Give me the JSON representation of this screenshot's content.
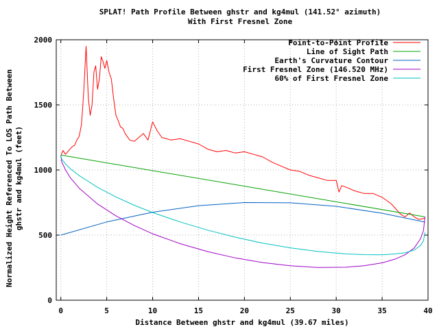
{
  "chart_data": {
    "type": "line",
    "title": "SPLAT! Path Profile Between ghstr and kg4mul (141.52° azimuth)",
    "subtitle": "With First Fresnel Zone",
    "xlabel": "Distance Between ghstr and kg4mul (39.67 miles)",
    "ylabel_line1": "Normalized Height Referenced To LOS Path Between",
    "ylabel_line2": "ghstr and kg4mul (feet)",
    "xlim": [
      -0.5,
      40
    ],
    "ylim": [
      0,
      2000
    ],
    "xticks": [
      0,
      5,
      10,
      15,
      20,
      25,
      30,
      35,
      40
    ],
    "yticks": [
      0,
      500,
      1000,
      1500,
      2000
    ],
    "xtick_labels": [
      "0",
      "5",
      "10",
      "15",
      "20",
      "25",
      "30",
      "35",
      "40"
    ],
    "ytick_labels": [
      "0",
      "500",
      "1000",
      "1500",
      "2000"
    ],
    "grid": true,
    "legend_position": "top-right",
    "series": [
      {
        "name": "Point-to-Point Profile",
        "color": "#ff0000",
        "x": [
          0,
          0.25,
          0.5,
          0.75,
          1,
          1.25,
          1.5,
          1.75,
          2,
          2.25,
          2.5,
          2.75,
          3,
          3.2,
          3.4,
          3.6,
          3.8,
          4,
          4.2,
          4.4,
          4.6,
          4.8,
          5,
          5.25,
          5.5,
          5.75,
          6,
          6.25,
          6.5,
          6.75,
          7,
          7.5,
          8,
          8.5,
          9,
          9.5,
          10,
          10.5,
          11,
          11.5,
          12,
          13,
          14,
          15,
          16,
          17,
          18,
          19,
          20,
          21,
          22,
          23,
          24,
          25,
          26,
          27,
          28,
          29,
          30,
          30.3,
          30.6,
          31,
          32,
          33,
          34,
          35,
          36,
          36.5,
          37,
          37.5,
          38,
          38.5,
          39,
          39.67
        ],
        "y": [
          1110,
          1150,
          1120,
          1140,
          1160,
          1180,
          1190,
          1230,
          1260,
          1350,
          1600,
          1950,
          1550,
          1420,
          1500,
          1750,
          1800,
          1620,
          1700,
          1870,
          1830,
          1780,
          1840,
          1750,
          1700,
          1550,
          1420,
          1380,
          1330,
          1320,
          1280,
          1230,
          1220,
          1250,
          1280,
          1230,
          1370,
          1300,
          1250,
          1240,
          1230,
          1240,
          1220,
          1200,
          1160,
          1140,
          1150,
          1130,
          1140,
          1120,
          1100,
          1060,
          1030,
          1000,
          990,
          960,
          940,
          920,
          920,
          830,
          880,
          870,
          840,
          820,
          820,
          790,
          740,
          700,
          660,
          640,
          670,
          640,
          620,
          630
        ]
      },
      {
        "name": "Line of Sight Path",
        "color": "#00a000",
        "x": [
          0,
          39.67
        ],
        "y": [
          1115,
          640
        ]
      },
      {
        "name": "Earth's Curvature Contour",
        "color": "#0060c0",
        "x": [
          0,
          5,
          10,
          15,
          20,
          25,
          30,
          35,
          39.67
        ],
        "y": [
          500,
          601,
          676,
          726,
          750,
          748,
          721,
          668,
          600
        ]
      },
      {
        "name": "First Fresnel Zone (146.520 MHz)",
        "color": "#9f00c5",
        "x": [
          0,
          0.1,
          0.5,
          1,
          2,
          4,
          6,
          8,
          10,
          13,
          16,
          19,
          22,
          25,
          28,
          31,
          33,
          35,
          36.5,
          37.5,
          38.5,
          39.2,
          39.5,
          39.67
        ],
        "y": [
          1115,
          1062,
          1002,
          943,
          860,
          739,
          648,
          573,
          510,
          434,
          373,
          325,
          289,
          264,
          251,
          253,
          264,
          287,
          318,
          349,
          401,
          474,
          534,
          640
        ]
      },
      {
        "name": "60% of First Fresnel Zone",
        "color": "#00c0c0",
        "x": [
          0,
          0.1,
          0.5,
          1,
          2,
          4,
          6,
          8,
          10,
          13,
          16,
          19,
          22,
          25,
          28,
          31,
          33,
          35,
          36.5,
          37.5,
          38.5,
          39.2,
          39.5,
          39.67
        ],
        "y": [
          1115,
          1083,
          1047,
          1011,
          957,
          867,
          793,
          729,
          673,
          601,
          538,
          484,
          438,
          402,
          374,
          356,
          350,
          349,
          356,
          364,
          385,
          422,
          456,
          520
        ]
      }
    ]
  }
}
